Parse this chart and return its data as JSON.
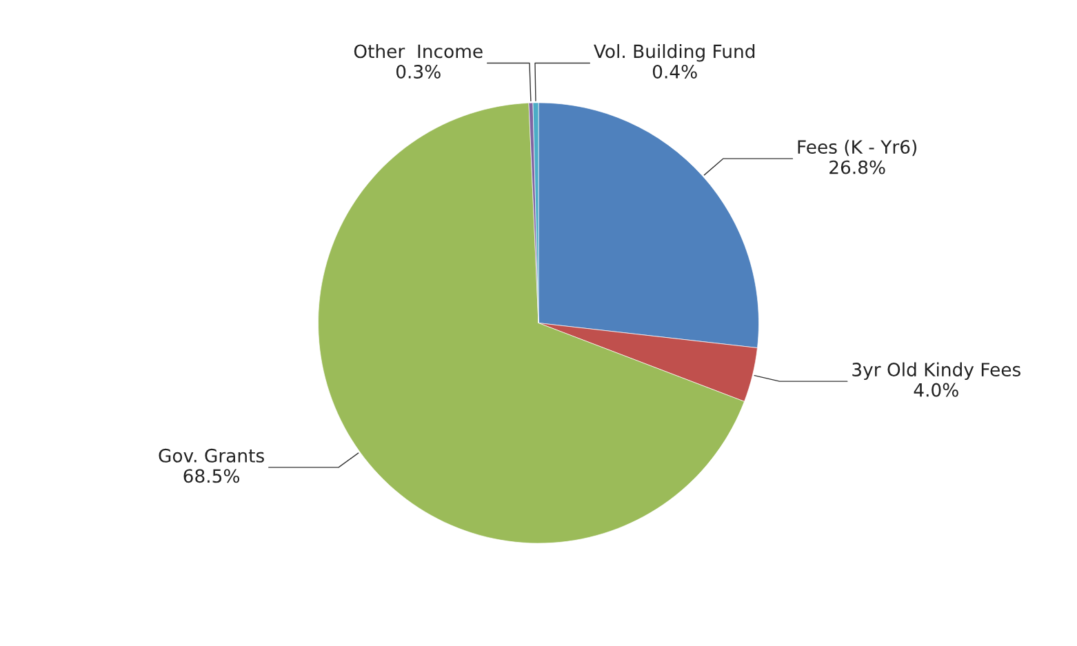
{
  "chart_data": {
    "type": "pie",
    "categories": [
      "Fees (K - Yr6)",
      "3yr Old Kindy Fees",
      "Gov. Grants",
      "Other  Income",
      "Vol. Building Fund"
    ],
    "values": [
      26.8,
      4.0,
      68.5,
      0.3,
      0.4
    ],
    "value_labels": [
      "26.8%",
      "4.0%",
      "68.5%",
      "0.3%",
      "0.4%"
    ],
    "colors": [
      "#4f81bd",
      "#c0504d",
      "#9bbb59",
      "#8064a2",
      "#4bacc6"
    ]
  }
}
